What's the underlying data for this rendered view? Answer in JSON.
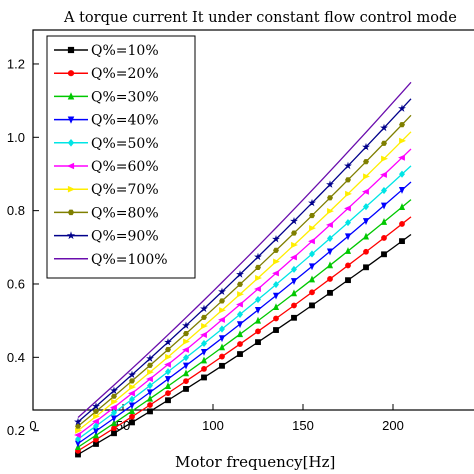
{
  "chart_data": {
    "type": "line",
    "title": "A torque current It under constant flow control mode",
    "xlabel": "Motor frequency[Hz]",
    "ylabel": "",
    "xlim": [
      0,
      230
    ],
    "ylim": [
      0.1,
      1.3
    ],
    "x_ticks": [
      "0",
      "50",
      "100",
      "150",
      "200"
    ],
    "y_ticks": [
      "0.2",
      "0.4",
      "0.6",
      "0.8",
      "1.0",
      "1.2"
    ],
    "legend_position": "top-left",
    "grid": false,
    "x": [
      25,
      30,
      35,
      40,
      45,
      50,
      55,
      60,
      65,
      70,
      75,
      80,
      85,
      90,
      95,
      100,
      105,
      110,
      115,
      120,
      125,
      130,
      135,
      140,
      145,
      150,
      155,
      160,
      165,
      170,
      175,
      180,
      185,
      190,
      195,
      200,
      205,
      210
    ],
    "series": [
      {
        "name": "Q%=10%",
        "color": "#000000",
        "marker": "square",
        "start": 0.135,
        "end": 0.735
      },
      {
        "name": "Q%=20%",
        "color": "#ff0000",
        "marker": "circle",
        "start": 0.145,
        "end": 0.783
      },
      {
        "name": "Q%=30%",
        "color": "#00c800",
        "marker": "triangle-up",
        "start": 0.155,
        "end": 0.83
      },
      {
        "name": "Q%=40%",
        "color": "#0000ff",
        "marker": "triangle-down",
        "start": 0.165,
        "end": 0.878
      },
      {
        "name": "Q%=50%",
        "color": "#00e5e5",
        "marker": "diamond",
        "start": 0.177,
        "end": 0.922
      },
      {
        "name": "Q%=60%",
        "color": "#ff00ff",
        "marker": "triangle-left",
        "start": 0.188,
        "end": 0.968
      },
      {
        "name": "Q%=70%",
        "color": "#ffee00",
        "marker": "triangle-right",
        "start": 0.2,
        "end": 1.015
      },
      {
        "name": "Q%=80%",
        "color": "#7f7f00",
        "marker": "hexagon",
        "start": 0.212,
        "end": 1.06
      },
      {
        "name": "Q%=90%",
        "color": "#00008b",
        "marker": "star",
        "start": 0.224,
        "end": 1.105
      },
      {
        "name": "Q%=100%",
        "color": "#6a0dad",
        "marker": "none",
        "start": 0.236,
        "end": 1.15
      }
    ]
  }
}
